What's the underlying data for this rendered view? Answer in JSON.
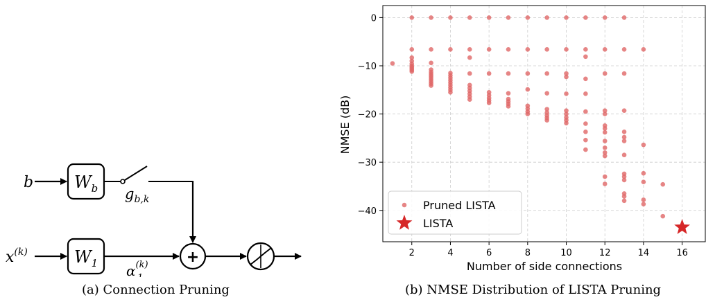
{
  "captions": {
    "a": "(a)  Connection Pruning",
    "b": "(b)  NMSE Distribution of LISTA Pruning"
  },
  "diagram": {
    "input_b": "b",
    "input_x": "x",
    "input_x_sup": "(k)",
    "block_wb": "W",
    "block_wb_sub": "b",
    "block_w1": "W",
    "block_w1_sub": "1",
    "switch_label": "g",
    "switch_label_sub": "b,k",
    "alpha_label": "α",
    "alpha_sub": "1",
    "alpha_sup": "(k)",
    "sum_symbol": "+"
  },
  "colors": {
    "pruned": "#e06666",
    "lista": "#d62728",
    "grid": "#cccccc"
  },
  "chart_data": {
    "type": "scatter",
    "xlabel": "Number of side connections",
    "ylabel": "NMSE (dB)",
    "xlim": [
      0.5,
      17.2
    ],
    "ylim": [
      -46.5,
      2.5
    ],
    "xticks": [
      2,
      4,
      6,
      8,
      10,
      12,
      14,
      16
    ],
    "yticks": [
      0,
      -10,
      -20,
      -30,
      -40
    ],
    "ytick_labels": [
      "0",
      "−10",
      "−20",
      "−30",
      "−40"
    ],
    "grid": true,
    "legend_position": "lower-left",
    "series": [
      {
        "name": "Pruned LISTA",
        "marker": "circle",
        "points": [
          [
            1,
            -9.5
          ],
          [
            2,
            0
          ],
          [
            2,
            -6.6
          ],
          [
            2,
            -8.3
          ],
          [
            2,
            -9.0
          ],
          [
            2,
            -9.6
          ],
          [
            2,
            -10.0
          ],
          [
            2,
            -10.3
          ],
          [
            2,
            -10.6
          ],
          [
            2,
            -10.9
          ],
          [
            2,
            -11.2
          ],
          [
            3,
            0
          ],
          [
            3,
            -6.6
          ],
          [
            3,
            -9.4
          ],
          [
            3,
            -10.8
          ],
          [
            3,
            -11.3
          ],
          [
            3,
            -11.7
          ],
          [
            3,
            -12.1
          ],
          [
            3,
            -12.5
          ],
          [
            3,
            -12.9
          ],
          [
            3,
            -13.3
          ],
          [
            3,
            -13.7
          ],
          [
            3,
            -14.1
          ],
          [
            4,
            0
          ],
          [
            4,
            -6.6
          ],
          [
            4,
            -11.5
          ],
          [
            4,
            -12.0
          ],
          [
            4,
            -12.5
          ],
          [
            4,
            -13.0
          ],
          [
            4,
            -13.5
          ],
          [
            4,
            -14.0
          ],
          [
            4,
            -14.5
          ],
          [
            4,
            -15.0
          ],
          [
            4,
            -15.5
          ],
          [
            5,
            0
          ],
          [
            5,
            -6.6
          ],
          [
            5,
            -8.3
          ],
          [
            5,
            -11.6
          ],
          [
            5,
            -14.0
          ],
          [
            5,
            -14.6
          ],
          [
            5,
            -15.2
          ],
          [
            5,
            -15.8
          ],
          [
            5,
            -16.4
          ],
          [
            5,
            -17.0
          ],
          [
            6,
            0
          ],
          [
            6,
            -6.6
          ],
          [
            6,
            -11.6
          ],
          [
            6,
            -15.5
          ],
          [
            6,
            -16.1
          ],
          [
            6,
            -16.7
          ],
          [
            6,
            -17.2
          ],
          [
            6,
            -17.7
          ],
          [
            7,
            0
          ],
          [
            7,
            -6.6
          ],
          [
            7,
            -11.6
          ],
          [
            7,
            -15.7
          ],
          [
            7,
            -16.9
          ],
          [
            7,
            -17.4
          ],
          [
            7,
            -17.9
          ],
          [
            7,
            -18.4
          ],
          [
            8,
            0
          ],
          [
            8,
            -6.6
          ],
          [
            8,
            -11.6
          ],
          [
            8,
            -14.9
          ],
          [
            8,
            -18.3
          ],
          [
            8,
            -18.9
          ],
          [
            8,
            -19.5
          ],
          [
            8,
            -20.0
          ],
          [
            9,
            0
          ],
          [
            9,
            -6.6
          ],
          [
            9,
            -11.6
          ],
          [
            9,
            -15.7
          ],
          [
            9,
            -19.0
          ],
          [
            9,
            -19.7
          ],
          [
            9,
            -20.3
          ],
          [
            9,
            -20.8
          ],
          [
            9,
            -21.3
          ],
          [
            10,
            0
          ],
          [
            10,
            -6.6
          ],
          [
            10,
            -11.6
          ],
          [
            10,
            -12.3
          ],
          [
            10,
            -15.8
          ],
          [
            10,
            -19.3
          ],
          [
            10,
            -20.0
          ],
          [
            10,
            -20.7
          ],
          [
            10,
            -21.3
          ],
          [
            10,
            -21.9
          ],
          [
            11,
            0
          ],
          [
            11,
            -6.6
          ],
          [
            11,
            -8.1
          ],
          [
            11,
            -12.7
          ],
          [
            11,
            -15.8
          ],
          [
            11,
            -19.5
          ],
          [
            11,
            -22.0
          ],
          [
            11,
            -23.7
          ],
          [
            11,
            -25.4
          ],
          [
            11,
            -27.4
          ],
          [
            12,
            0
          ],
          [
            12,
            -6.6
          ],
          [
            12,
            -11.6
          ],
          [
            12,
            -19.3
          ],
          [
            12,
            -20.0
          ],
          [
            12,
            -22.4
          ],
          [
            12,
            -23.0
          ],
          [
            12,
            -23.8
          ],
          [
            12,
            -25.6
          ],
          [
            12,
            -27.0
          ],
          [
            12,
            -28.0
          ],
          [
            12,
            -28.7
          ],
          [
            12,
            -33.0
          ],
          [
            12,
            -34.5
          ],
          [
            13,
            0
          ],
          [
            13,
            -6.6
          ],
          [
            13,
            -11.6
          ],
          [
            13,
            -19.3
          ],
          [
            13,
            -23.7
          ],
          [
            13,
            -24.8
          ],
          [
            13,
            -25.6
          ],
          [
            13,
            -28.5
          ],
          [
            13,
            -32.4
          ],
          [
            13,
            -33.0
          ],
          [
            13,
            -33.7
          ],
          [
            13,
            -36.5
          ],
          [
            13,
            -37.1
          ],
          [
            13,
            -38.0
          ],
          [
            14,
            -6.6
          ],
          [
            14,
            -26.4
          ],
          [
            14,
            -32.3
          ],
          [
            14,
            -34.1
          ],
          [
            14,
            -37.8
          ],
          [
            14,
            -38.7
          ],
          [
            15,
            -34.6
          ],
          [
            15,
            -41.2
          ]
        ]
      },
      {
        "name": "LISTA",
        "marker": "star",
        "points": [
          [
            16,
            -43.5
          ]
        ]
      }
    ]
  }
}
